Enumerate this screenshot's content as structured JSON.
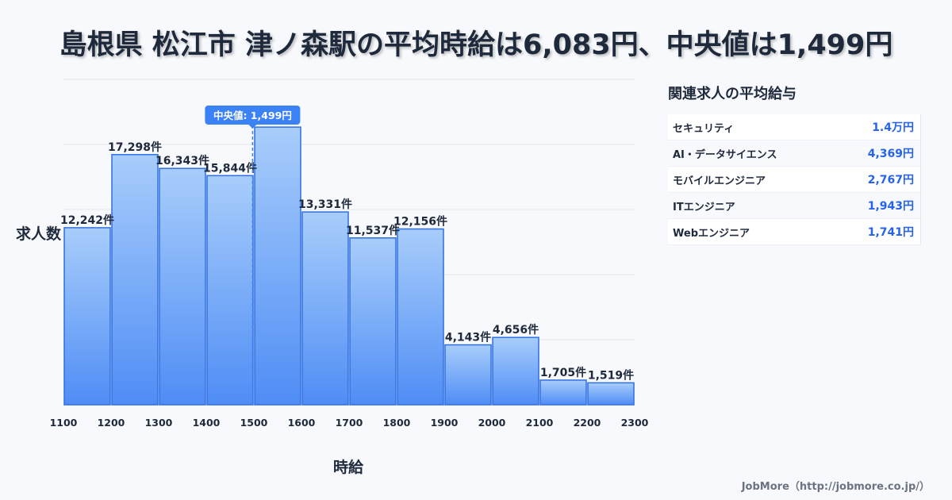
{
  "title": "島根県 松江市 津ノ森駅の平均時給は6,083円、中央値は1,499円",
  "chart_data": {
    "type": "bar",
    "xlabel": "時給",
    "ylabel": "求人数",
    "x_ticks": [
      "1100",
      "1200",
      "1300",
      "1400",
      "1500",
      "1600",
      "1700",
      "1800",
      "1900",
      "2000",
      "2100",
      "2200",
      "2300"
    ],
    "bins": [
      {
        "from": 1100,
        "to": 1200,
        "value": 12242,
        "label": "12,242件"
      },
      {
        "from": 1200,
        "to": 1300,
        "value": 17298,
        "label": "17,298件"
      },
      {
        "from": 1300,
        "to": 1400,
        "value": 16343,
        "label": "16,343件"
      },
      {
        "from": 1400,
        "to": 1500,
        "value": 15844,
        "label": "15,844件"
      },
      {
        "from": 1500,
        "to": 1600,
        "value": 19200,
        "label": ""
      },
      {
        "from": 1600,
        "to": 1700,
        "value": 13331,
        "label": "13,331件"
      },
      {
        "from": 1700,
        "to": 1800,
        "value": 11537,
        "label": "11,537件"
      },
      {
        "from": 1800,
        "to": 1900,
        "value": 12156,
        "label": "12,156件"
      },
      {
        "from": 1900,
        "to": 2000,
        "value": 4143,
        "label": "4,143件"
      },
      {
        "from": 2000,
        "to": 2100,
        "value": 4656,
        "label": "4,656件"
      },
      {
        "from": 2100,
        "to": 2200,
        "value": 1705,
        "label": "1,705件"
      },
      {
        "from": 2200,
        "to": 2300,
        "value": 1519,
        "label": "1,519件"
      }
    ],
    "x_range": [
      1100,
      2300
    ],
    "y_range": [
      0,
      22500
    ],
    "y_gridlines": [
      0,
      4500,
      9000,
      13500,
      18000,
      22500
    ],
    "median": {
      "value": 1499,
      "label": "中央値: 1,499円"
    },
    "colors": {
      "bar_top": "#a8cdfb",
      "bar_bottom": "#4f8df5",
      "bar_stroke": "#2f6fe0",
      "median_badge": "#3b82f6",
      "grid": "#e5e7eb"
    }
  },
  "related_jobs": {
    "title": "関連求人の平均給与",
    "items": [
      {
        "name": "セキュリティ",
        "value": "1.4万円"
      },
      {
        "name": "AI・データサイエンス",
        "value": "4,369円"
      },
      {
        "name": "モバイルエンジニア",
        "value": "2,767円"
      },
      {
        "name": "ITエンジニア",
        "value": "1,943円"
      },
      {
        "name": "Webエンジニア",
        "value": "1,741円"
      }
    ]
  },
  "footer": "JobMore（http://jobmore.co.jp/）"
}
